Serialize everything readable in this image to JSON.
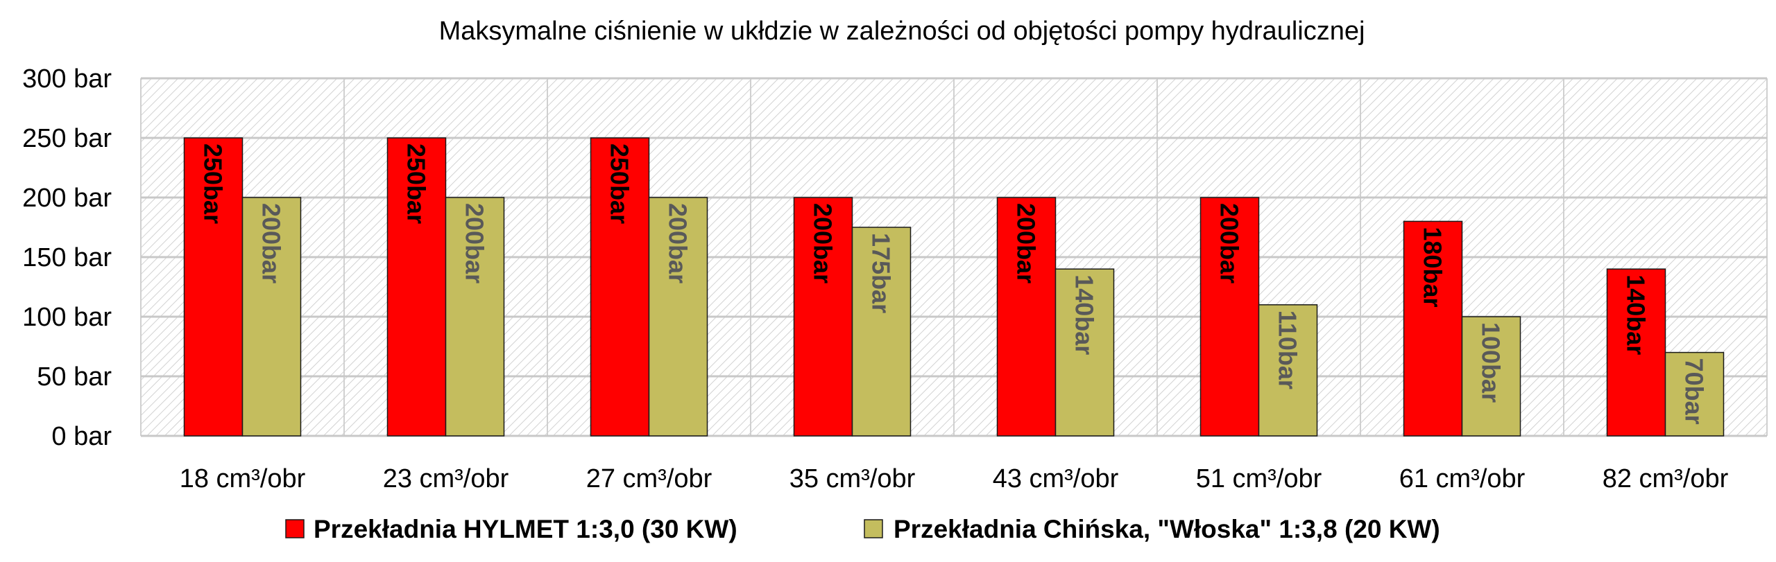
{
  "chart_data": {
    "type": "bar",
    "title": "Maksymalne ciśnienie w ukłdzie w zależności od objętości pompy hydraulicznej",
    "categories": [
      "18 cm³/obr",
      "23 cm³/obr",
      "27 cm³/obr",
      "35 cm³/obr",
      "43 cm³/obr",
      "51 cm³/obr",
      "61 cm³/obr",
      "82 cm³/obr"
    ],
    "series": [
      {
        "name": "Przekładnia HYLMET 1:3,0 (30 KW)",
        "values": [
          250,
          250,
          250,
          200,
          200,
          200,
          180,
          140
        ],
        "labels": [
          "250bar",
          "250bar",
          "250bar",
          "200bar",
          "200bar",
          "200bar",
          "180bar",
          "140bar"
        ],
        "color": "#FF0000",
        "label_color": "#000000"
      },
      {
        "name": "Przekładnia Chińska, \"Włoska\" 1:3,8 (20 KW)",
        "values": [
          200,
          200,
          200,
          175,
          140,
          110,
          100,
          70
        ],
        "labels": [
          "200bar",
          "200bar",
          "200bar",
          "175bar",
          "140bar",
          "110bar",
          "100bar",
          "70bar"
        ],
        "color": "#C4BD5E",
        "label_color": "#595959"
      }
    ],
    "ylim": [
      0,
      300
    ],
    "yticks": [
      0,
      50,
      100,
      150,
      200,
      250,
      300
    ],
    "ytick_labels": [
      "0 bar",
      "50 bar",
      "100 bar",
      "150 bar",
      "200 bar",
      "250 bar",
      "300 bar"
    ],
    "grid": true,
    "legend_position": "bottom",
    "xlabel": "",
    "ylabel": ""
  }
}
